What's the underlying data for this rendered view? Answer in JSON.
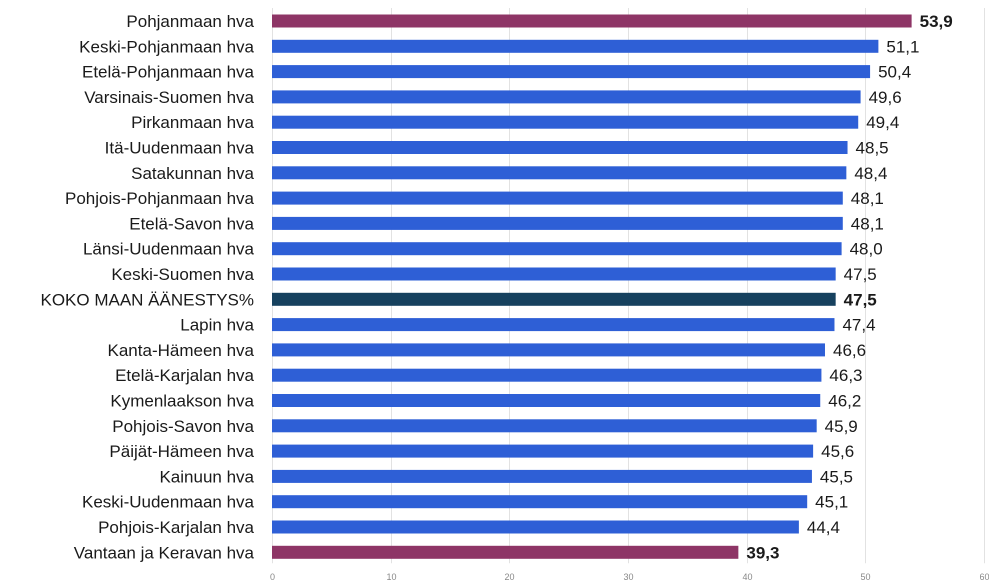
{
  "chart_data": {
    "type": "bar",
    "orientation": "horizontal",
    "categories": [
      "Pohjanmaan hva",
      "Keski-Pohjanmaan hva",
      "Etelä-Pohjanmaan hva",
      "Varsinais-Suomen hva",
      "Pirkanmaan hva",
      "Itä-Uudenmaan hva",
      "Satakunnan hva",
      "Pohjois-Pohjanmaan hva",
      "Etelä-Savon hva",
      "Länsi-Uudenmaan hva",
      "Keski-Suomen hva",
      "KOKO MAAN ÄÄNESTYS%",
      "Lapin hva",
      "Kanta-Hämeen hva",
      "Etelä-Karjalan hva",
      "Kymenlaakson hva",
      "Pohjois-Savon hva",
      "Päijät-Hämeen hva",
      "Kainuun hva",
      "Keski-Uudenmaan hva",
      "Pohjois-Karjalan hva",
      "Vantaan ja Keravan hva"
    ],
    "values": [
      53.9,
      51.1,
      50.4,
      49.6,
      49.4,
      48.5,
      48.4,
      48.1,
      48.1,
      48.0,
      47.5,
      47.5,
      47.4,
      46.6,
      46.3,
      46.2,
      45.9,
      45.6,
      45.5,
      45.1,
      44.4,
      39.3
    ],
    "value_labels": [
      "53,9",
      "51,1",
      "50,4",
      "49,6",
      "49,4",
      "48,5",
      "48,4",
      "48,1",
      "48,1",
      "48,0",
      "47,5",
      "47,5",
      "47,4",
      "46,6",
      "46,3",
      "46,2",
      "45,9",
      "45,6",
      "45,5",
      "45,1",
      "44,4",
      "39,3"
    ],
    "bar_colors": [
      "#8e3566",
      "#2e5fd6",
      "#2e5fd6",
      "#2e5fd6",
      "#2e5fd6",
      "#2e5fd6",
      "#2e5fd6",
      "#2e5fd6",
      "#2e5fd6",
      "#2e5fd6",
      "#2e5fd6",
      "#16415e",
      "#2e5fd6",
      "#2e5fd6",
      "#2e5fd6",
      "#2e5fd6",
      "#2e5fd6",
      "#2e5fd6",
      "#2e5fd6",
      "#2e5fd6",
      "#2e5fd6",
      "#8e3566"
    ],
    "bold_labels": [
      true,
      false,
      false,
      false,
      false,
      false,
      false,
      false,
      false,
      false,
      false,
      true,
      false,
      false,
      false,
      false,
      false,
      false,
      false,
      false,
      false,
      true
    ],
    "xlim": [
      0,
      60
    ],
    "x_ticks": [
      0,
      10,
      20,
      30,
      40,
      50,
      60
    ],
    "x_tick_labels": [
      "0",
      "10",
      "20",
      "30",
      "40",
      "50",
      "60"
    ],
    "grid": true,
    "title": "",
    "xlabel": "",
    "ylabel": ""
  }
}
